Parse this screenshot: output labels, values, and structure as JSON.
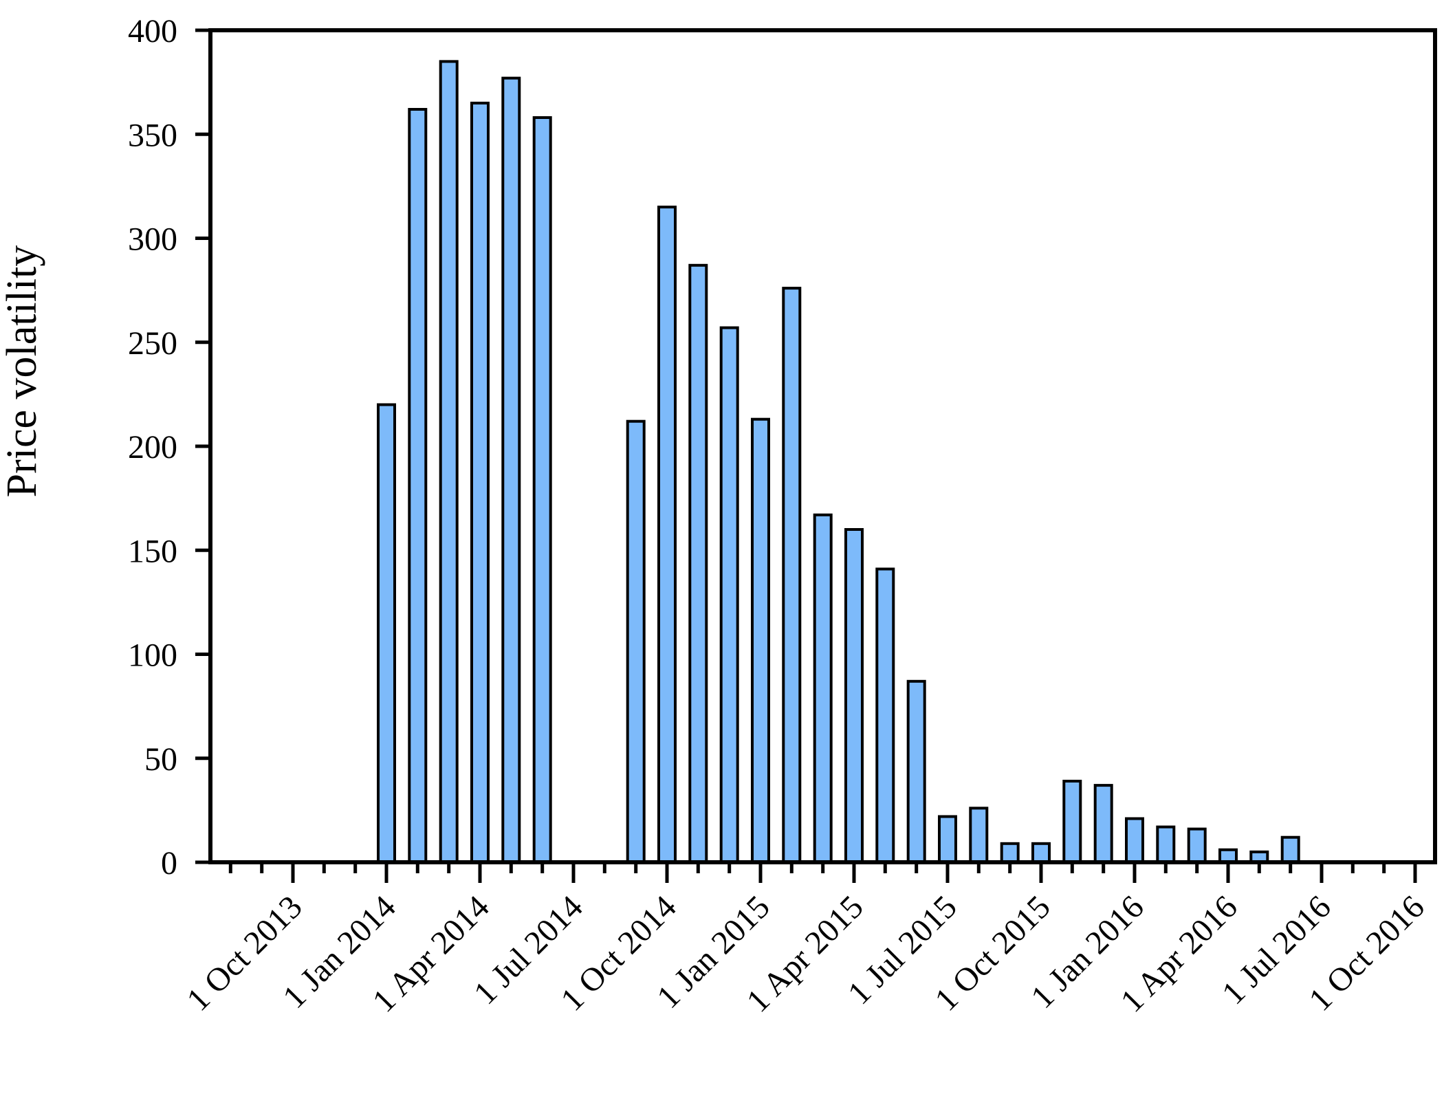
{
  "chart_data": {
    "type": "bar",
    "title": "",
    "xlabel": "",
    "ylabel": "Price volatility",
    "ylim": [
      0,
      400
    ],
    "yticks": [
      0,
      50,
      100,
      150,
      200,
      250,
      300,
      350,
      400
    ],
    "grid": false,
    "legend": "none",
    "bar_color": "#7dbafa",
    "bar_edge_color": "#000000",
    "x_minor_tick_interval": "month",
    "x_range_months": [
      "Aug 2013",
      "Oct 2016"
    ],
    "x_major_tick_labels": [
      "1 Oct 2013",
      "1 Jan 2014",
      "1 Apr 2014",
      "1 Jul 2014",
      "1 Oct 2014",
      "1 Jan 2015",
      "1 Apr 2015",
      "1 Jul 2015",
      "1 Oct 2015",
      "1 Jan 2016",
      "1 Apr 2016",
      "1 Jul 2016",
      "1 Oct 2016"
    ],
    "bars": [
      {
        "month": "Jan 2014",
        "value": 220
      },
      {
        "month": "Feb 2014",
        "value": 362
      },
      {
        "month": "Mar 2014",
        "value": 385
      },
      {
        "month": "Apr 2014",
        "value": 365
      },
      {
        "month": "May 2014",
        "value": 377
      },
      {
        "month": "Jun 2014",
        "value": 358
      },
      {
        "month": "Sep 2014",
        "value": 212
      },
      {
        "month": "Oct 2014",
        "value": 315
      },
      {
        "month": "Nov 2014",
        "value": 287
      },
      {
        "month": "Dec 2014",
        "value": 257
      },
      {
        "month": "Jan 2015",
        "value": 213
      },
      {
        "month": "Feb 2015",
        "value": 276
      },
      {
        "month": "Mar 2015",
        "value": 167
      },
      {
        "month": "Apr 2015",
        "value": 160
      },
      {
        "month": "May 2015",
        "value": 141
      },
      {
        "month": "Jun 2015",
        "value": 87
      },
      {
        "month": "Jul 2015",
        "value": 22
      },
      {
        "month": "Aug 2015",
        "value": 26
      },
      {
        "month": "Sep 2015",
        "value": 9
      },
      {
        "month": "Oct 2015",
        "value": 9
      },
      {
        "month": "Nov 2015",
        "value": 39
      },
      {
        "month": "Dec 2015",
        "value": 37
      },
      {
        "month": "Jan 2016",
        "value": 21
      },
      {
        "month": "Feb 2016",
        "value": 17
      },
      {
        "month": "Mar 2016",
        "value": 16
      },
      {
        "month": "Apr 2016",
        "value": 6
      },
      {
        "month": "May 2016",
        "value": 5
      },
      {
        "month": "Jun 2016",
        "value": 12
      }
    ]
  }
}
